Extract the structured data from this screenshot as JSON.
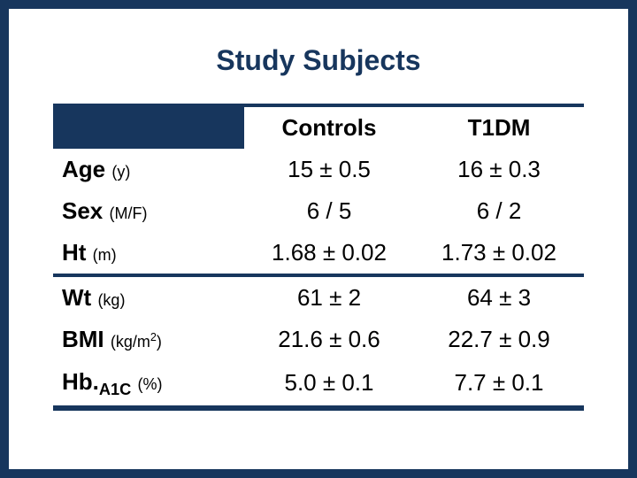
{
  "slide": {
    "title": "Study Subjects",
    "border_color": "#17365d",
    "title_color": "#17365d",
    "background_color": "#ffffff",
    "title_fontsize": 32,
    "cell_fontsize": 26,
    "unit_fontsize": 18
  },
  "table": {
    "type": "table",
    "columns": [
      "",
      "Controls",
      "T1DM"
    ],
    "col_widths": [
      "36%",
      "32%",
      "32%"
    ],
    "section_break_after_row": 3,
    "rows": [
      {
        "label": "Age",
        "unit": "(y)",
        "controls": "15 ± 0.5",
        "t1dm": "16 ± 0.3"
      },
      {
        "label": "Sex",
        "unit": "(M/F)",
        "controls": "6 / 5",
        "t1dm": "6 / 2"
      },
      {
        "label": "Ht",
        "unit": "(m)",
        "controls": "1.68 ±  0.02",
        "t1dm": "1.73 ±  0.02"
      },
      {
        "label": "Wt",
        "unit": "(kg)",
        "controls": "61 ±  2",
        "t1dm": "64 ±  3"
      },
      {
        "label": "BMI",
        "unit": "(kg/m2)",
        "unit_html": "(kg/m<sup>2</sup>)",
        "controls": "21.6 ±  0.6",
        "t1dm": "22.7 ± 0.9"
      },
      {
        "label": "Hb",
        "label_html": "Hb.<sub>A1C</sub>",
        "unit": "(%)",
        "controls": "5.0 ±  0.1",
        "t1dm": "7.7 ± 0.1"
      }
    ]
  }
}
